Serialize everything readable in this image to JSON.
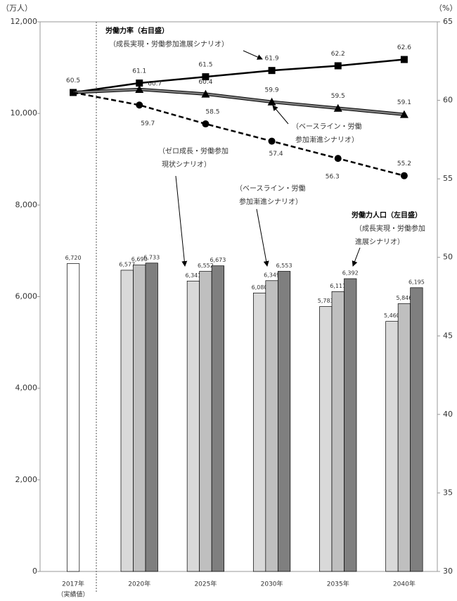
{
  "chart_data": {
    "type": "bar_line",
    "y_unit": "（万人）",
    "y2_unit": "（%）",
    "categories": [
      "2017年",
      "2020年",
      "2025年",
      "2030年",
      "2035年",
      "2040年"
    ],
    "category_note": "（実績値）",
    "ylim": [
      0,
      12000
    ],
    "yticks": [
      0,
      {
        "value": 2000,
        "label": "2,000"
      },
      {
        "value": 4000,
        "label": "4,000"
      },
      {
        "value": 6000,
        "label": "6,000"
      },
      {
        "value": 8000,
        "label": "8,000"
      },
      {
        "value": 10000,
        "label": "10,000"
      },
      {
        "value": 12000,
        "label": "12,000"
      }
    ],
    "y2lim": [
      30,
      65
    ],
    "y2ticks": [
      30,
      35,
      40,
      45,
      50,
      55,
      60,
      65
    ],
    "bar_series": [
      {
        "color": "#ffffff",
        "values": [
          6720,
          null,
          null,
          null,
          null,
          null
        ],
        "value_labels": [
          "6,720",
          null,
          null,
          null,
          null,
          null
        ]
      },
      {
        "color": "#d9d9d9",
        "values": [
          null,
          6577,
          6341,
          6080,
          5783,
          5460
        ],
        "value_labels": [
          null,
          "6,577",
          "6,341",
          "6,080",
          "5,783",
          "5,460"
        ]
      },
      {
        "color": "#bfbfbf",
        "values": [
          null,
          6690,
          6552,
          6349,
          6111,
          5846
        ],
        "value_labels": [
          null,
          "6,690",
          "6,552",
          "6,349",
          "6,111",
          "5,846"
        ]
      },
      {
        "color": "#7f7f7f",
        "values": [
          null,
          6733,
          6673,
          6553,
          6392,
          6195
        ],
        "value_labels": [
          null,
          "6,733",
          "6,673",
          "6,553",
          "6,392",
          "6,195"
        ]
      }
    ],
    "line_series": [
      {
        "axis": "y2",
        "color": "#000000",
        "marker": "square",
        "dash": false,
        "values": [
          60.5,
          61.1,
          61.5,
          61.9,
          62.2,
          62.6
        ]
      },
      {
        "axis": "y2",
        "color": "#808080",
        "marker": "triangle",
        "dash": false,
        "values": [
          60.5,
          60.7,
          60.4,
          59.9,
          59.5,
          59.1
        ]
      },
      {
        "axis": "y2",
        "color": "#000000",
        "marker": "circle",
        "dash": true,
        "values": [
          60.5,
          59.7,
          58.5,
          57.4,
          56.3,
          55.2
        ]
      }
    ],
    "annotations": [
      {
        "lines": [
          "労働力率（右目盛）",
          "（成長実現・労働参加進展シナリオ）"
        ]
      },
      {
        "lines": [
          "（ベースライン・労働",
          "参加漸進シナリオ）"
        ]
      },
      {
        "lines": [
          "（ゼロ成長・労働参加",
          "現状シナリオ）"
        ]
      },
      {
        "lines": [
          "（ベースライン・労働",
          "参加漸進シナリオ）"
        ]
      },
      {
        "lines": [
          "労働力人口（左目盛）",
          "（成長実現・労働参加",
          "進展シナリオ）"
        ]
      }
    ]
  }
}
